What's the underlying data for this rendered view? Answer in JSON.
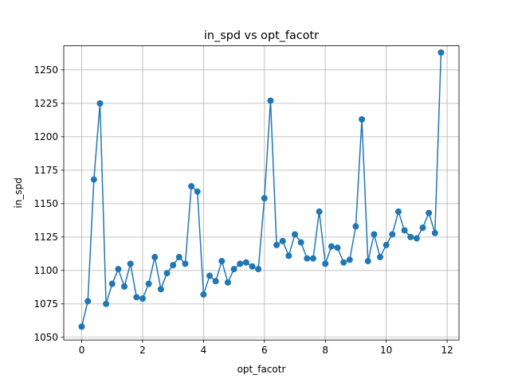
{
  "chart_data": {
    "type": "line",
    "title": "in_spd vs opt_facotr",
    "xlabel": "opt_facotr",
    "ylabel": "in_spd",
    "xlim": [
      -0.59,
      12.39
    ],
    "ylim": [
      1048,
      1268
    ],
    "xticks": [
      0,
      2,
      4,
      6,
      8,
      10,
      12
    ],
    "yticks": [
      1050,
      1075,
      1100,
      1125,
      1150,
      1175,
      1200,
      1225,
      1250
    ],
    "grid": true,
    "marker": "circle",
    "color": "#1f77b4",
    "series": [
      {
        "x": [
          0.0,
          0.2,
          0.4,
          0.6,
          0.8,
          1.0,
          1.2,
          1.4,
          1.6,
          1.8,
          2.0,
          2.2,
          2.4,
          2.6,
          2.8,
          3.0,
          3.2,
          3.4,
          3.6,
          3.8,
          4.0,
          4.2,
          4.4,
          4.6,
          4.8,
          5.0,
          5.2,
          5.4,
          5.6,
          5.8,
          6.0,
          6.2,
          6.4,
          6.6,
          6.8,
          7.0,
          7.2,
          7.4,
          7.6,
          7.8,
          8.0,
          8.2,
          8.4,
          8.6,
          8.8,
          9.0,
          9.2,
          9.4,
          9.6,
          9.8,
          10.0,
          10.2,
          10.4,
          10.6,
          10.8,
          11.0,
          11.2,
          11.4,
          11.6,
          11.8
        ],
        "y": [
          1058,
          1077,
          1168,
          1225,
          1075,
          1090,
          1101,
          1088,
          1105,
          1080,
          1079,
          1090,
          1110,
          1086,
          1098,
          1104,
          1110,
          1105,
          1163,
          1159,
          1082,
          1096,
          1092,
          1107,
          1091,
          1101,
          1105,
          1106,
          1103,
          1101,
          1154,
          1227,
          1119,
          1122,
          1111,
          1127,
          1121,
          1109,
          1109,
          1144,
          1105,
          1118,
          1117,
          1106,
          1108,
          1133,
          1213,
          1107,
          1127,
          1110,
          1119,
          1127,
          1144,
          1130,
          1125,
          1124,
          1132,
          1143,
          1128,
          1263
        ]
      }
    ]
  }
}
